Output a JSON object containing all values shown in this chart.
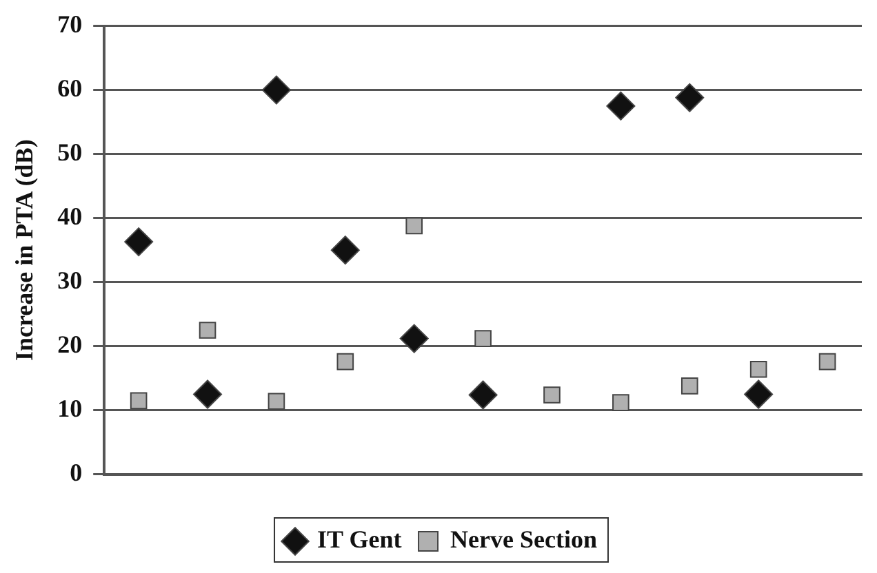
{
  "chart_data": {
    "type": "scatter",
    "ylabel": "Increase in PTA (dB)",
    "categories": [
      null,
      null,
      null,
      null,
      null,
      null,
      null,
      null,
      null,
      null,
      null
    ],
    "ylim": [
      0,
      70
    ],
    "yticks": [
      0,
      10,
      20,
      30,
      40,
      50,
      60,
      70
    ],
    "grid": "y",
    "legend": "bottom",
    "series": [
      {
        "name": "IT Gent",
        "color": "#111111",
        "marker": "diamond",
        "values": [
          36.3,
          12.5,
          60.0,
          35.0,
          21.2,
          12.4,
          null,
          57.5,
          58.8,
          12.5,
          null
        ]
      },
      {
        "name": "Nerve Section",
        "color": "#b0b0b0",
        "marker": "square",
        "values": [
          11.5,
          22.5,
          11.4,
          17.6,
          38.8,
          21.2,
          12.4,
          11.2,
          13.8,
          16.4,
          17.6
        ]
      }
    ]
  }
}
